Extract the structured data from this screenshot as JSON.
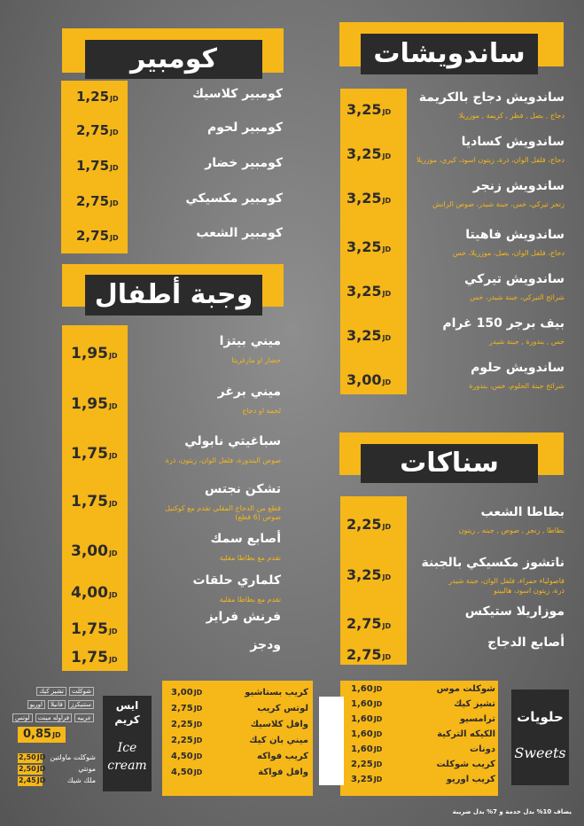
{
  "sandwiches": {
    "title": "ساندويشات",
    "items": [
      {
        "name": "ساندويش دجاج بالكريمة",
        "desc": "دجاج , بصل , فطر , كريمة , موزريلا",
        "price": "3,25",
        "unit": "JD"
      },
      {
        "name": "ساندويش كساديا",
        "desc": "دجاج، فلفل الوان، ذرة، زيتون اسود، كيري، موزريلا",
        "price": "3,25",
        "unit": "JD"
      },
      {
        "name": "ساندويش زنجر",
        "desc": "زنجر تيركي، خس، جبنة شيدر، صوص الرانش",
        "price": "3,25",
        "unit": "JD"
      },
      {
        "name": "ساندويش فاهيتا",
        "desc": "دجاج، فلفل الوان، بصل، موزريلا، خس",
        "price": "3,25",
        "unit": "JD"
      },
      {
        "name": "ساندويش تيركي",
        "desc": "شرائح التيركي، جبنة شيدر، خس",
        "price": "3,25",
        "unit": "JD"
      },
      {
        "name": "بيف برجر 150 غرام",
        "desc": "خس , بندورة , جبنة شيدر",
        "price": "3,25",
        "unit": "JD"
      },
      {
        "name": "ساندويش حلوم",
        "desc": "شرائح جبنة الحلوم، خس، بندورة",
        "price": "3,00",
        "unit": "JD"
      }
    ]
  },
  "kumpir": {
    "title": "كومبير",
    "items": [
      {
        "name": "كومبير كلاسيك",
        "price": "1,25",
        "unit": "JD"
      },
      {
        "name": "كومبير لحوم",
        "price": "2,75",
        "unit": "JD"
      },
      {
        "name": "كومبير خضار",
        "price": "1,75",
        "unit": "JD"
      },
      {
        "name": "كومبير مكسيكي",
        "price": "2,75",
        "unit": "JD"
      },
      {
        "name": "كومبير الشعب",
        "price": "2,75",
        "unit": "JD"
      }
    ]
  },
  "kids_meal": {
    "title": "وجبة أطفال",
    "items": [
      {
        "name": "ميني بيتزا",
        "desc": "خضار او مارغريتا",
        "price": "1,95",
        "unit": "JD"
      },
      {
        "name": "ميني برغر",
        "desc": "لحمة او دجاج",
        "price": "1,95",
        "unit": "JD"
      },
      {
        "name": "سباغيتي نابولي",
        "desc": "صوص البندورة، فلفل الوان، زيتون، ذرة",
        "price": "1,75",
        "unit": "JD"
      },
      {
        "name": "تشكن نجتس",
        "desc": "قطع من الدجاج المقلي تقدم مع كوكتيل",
        "desc2": "صوص (6 قطع)",
        "price": "1,75",
        "unit": "JD"
      },
      {
        "name": "أصابع سمك",
        "desc": "تقدم مع بطاطا مقلية",
        "price": "3,00",
        "unit": "JD"
      },
      {
        "name": "كلماري حلقات",
        "desc": "تقدم مع بطاطا مقلية",
        "price": "4,00",
        "unit": "JD"
      },
      {
        "name": "فرنش فرايز",
        "price": "1,75",
        "unit": "JD"
      },
      {
        "name": "ودجز",
        "price": "1,75",
        "unit": "JD"
      }
    ]
  },
  "snacks": {
    "title": "سناكات",
    "items": [
      {
        "name": "بطاطا الشعب",
        "desc": "بطاطا , زنجر , صوص , جبنه , زيتون",
        "price": "2,25",
        "unit": "JD"
      },
      {
        "name": "ناتشوز مكسيكي بالجبنة",
        "desc": "فاصولياء حمراء، فلفل الوان، جبنة شيدر",
        "desc2": "ذرة، زيتون اسود، هالبينو",
        "price": "3,25",
        "unit": "JD"
      },
      {
        "name": "موزاريلا ستيكس",
        "price": "2,75",
        "unit": "JD"
      },
      {
        "name": "أصابع الدجاج",
        "price": "2,75",
        "unit": "JD"
      }
    ]
  },
  "desserts": {
    "title": "حلويات",
    "script": "Sweets",
    "items": [
      {
        "name": "شوكلت موس",
        "price": "1,60"
      },
      {
        "name": "تشيز كيك",
        "price": "1,60"
      },
      {
        "name": "ترامسيو",
        "price": "1,60"
      },
      {
        "name": "الكيكه التركية",
        "price": "1,60"
      },
      {
        "name": "دونات",
        "price": "1,60"
      },
      {
        "name": "كريب شوكلت",
        "price": "2,25"
      },
      {
        "name": "كريب اوريو",
        "price": "3,25"
      }
    ],
    "unit": "JD"
  },
  "crepes": {
    "items": [
      {
        "name": "كريب بستاشيو",
        "price": "3,00"
      },
      {
        "name": "لوتس كريب",
        "price": "2,75"
      },
      {
        "name": "وافل كلاسيك",
        "price": "2,25"
      },
      {
        "name": "ميني بان كيك",
        "price": "2,25"
      },
      {
        "name": "كريب فواكه",
        "price": "4,50"
      },
      {
        "name": "وافل فواكة",
        "price": "4,50"
      }
    ],
    "unit": "JD"
  },
  "ice_cream": {
    "title_line1": "ايس",
    "title_line2": "كريم",
    "script_line1": "Ice",
    "script_line2": "cream",
    "flavors_row1": [
      "شوكلت",
      "تشيز كيك"
    ],
    "flavors_row2": [
      "ستنيكرز",
      "فانيلا",
      "اوريو"
    ],
    "flavors_row3": [
      "عربيه",
      "فراوله مينت",
      "لوتس"
    ],
    "scoop_price": "0,85",
    "extras": [
      {
        "name": "شوكلت ماولتين",
        "price": "2,50"
      },
      {
        "name": "مونتي",
        "price": "2,50"
      },
      {
        "name": "ملك شيك",
        "price": "2,45"
      }
    ],
    "unit": "JD"
  },
  "footer_note": "يضاف 10% بدل خدمة و 7% بدل ضريبة",
  "colors": {
    "accent": "#f6b719",
    "dark": "#2b2b2b",
    "background": "#707070"
  }
}
